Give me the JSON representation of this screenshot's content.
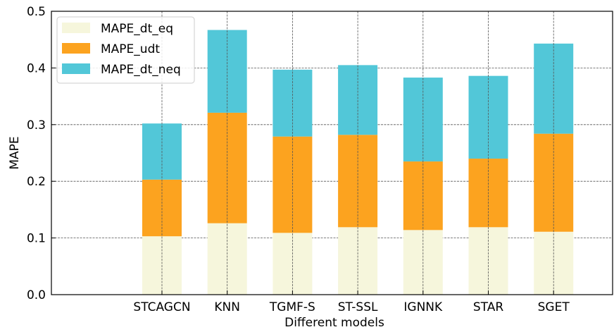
{
  "chart_data": {
    "type": "bar",
    "stacked": true,
    "title": "",
    "xlabel": "Different models",
    "ylabel": "MAPE",
    "ylim": [
      0,
      0.5
    ],
    "yticks": [
      "0.0",
      "0.1",
      "0.2",
      "0.3",
      "0.4",
      "0.5"
    ],
    "categories": [
      "STCAGCN",
      "KNN",
      "TGMF-S",
      "ST-SSL",
      "IGNNK",
      "STAR",
      "SGET"
    ],
    "grid": true,
    "legend_position": "top-left",
    "series": [
      {
        "name": "MAPE_dt_eq",
        "color": "#f6f6dc",
        "values": [
          0.103,
          0.126,
          0.109,
          0.119,
          0.114,
          0.119,
          0.111
        ]
      },
      {
        "name": "MAPE_udt",
        "color": "#fca31f",
        "values": [
          0.1,
          0.195,
          0.17,
          0.163,
          0.121,
          0.121,
          0.173
        ]
      },
      {
        "name": "MAPE_dt_neq",
        "color": "#52c7d8",
        "values": [
          0.099,
          0.146,
          0.118,
          0.123,
          0.148,
          0.146,
          0.159
        ]
      }
    ]
  }
}
